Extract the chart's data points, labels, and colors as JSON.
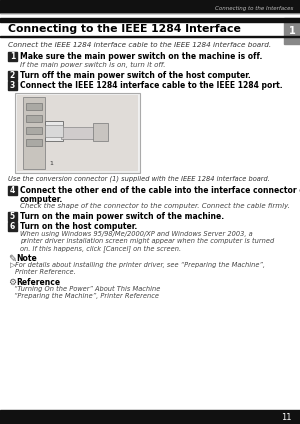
{
  "bg_color": "#ffffff",
  "header_bar_color": "#111111",
  "header_text": "Connecting to the Interfaces",
  "header_text_color": "#bbbbbb",
  "title": "Connecting to the IEEE 1284 Interface",
  "intro_text": "Connect the IEEE 1284 interface cable to the IEEE 1284 interface board.",
  "steps": [
    {
      "num": "1",
      "bold": "Make sure the main power switch on the machine is off.",
      "normal": "If the main power switch is on, turn it off."
    },
    {
      "num": "2",
      "bold": "Turn off the main power switch of the host computer.",
      "normal": ""
    },
    {
      "num": "3",
      "bold": "Connect the IEEE 1284 interface cable to the IEEE 1284 port.",
      "normal": ""
    }
  ],
  "caption": "Use the conversion connector (1) supplied with the IEEE 1284 interface board.",
  "steps2": [
    {
      "num": "4",
      "bold": "Connect the other end of the cable into the interface connector on the host\ncomputer.",
      "normal": "Check the shape of the connector to the computer. Connect the cable firmly."
    },
    {
      "num": "5",
      "bold": "Turn on the main power switch of the machine.",
      "normal": ""
    },
    {
      "num": "6",
      "bold": "Turn on the host computer.",
      "normal": "When using Windows 95/98/Me/2000/XP and Windows Server 2003, a\nprinter driver installation screen might appear when the computer is turned\non. If this happens, click [Cancel] on the screen."
    }
  ],
  "note_title": "Note",
  "note_text": "For details about installing the printer driver, see “Preparing the Machine”,\nPrinter Reference.",
  "ref_title": "Reference",
  "ref_lines": [
    "“Turning On the Power” About This Machine",
    "“Preparing the Machine”, Printer Reference"
  ],
  "page_num": "11",
  "tab_color": "#888888",
  "tab_text_color": "#ffffff",
  "footer_bar_color": "#111111"
}
